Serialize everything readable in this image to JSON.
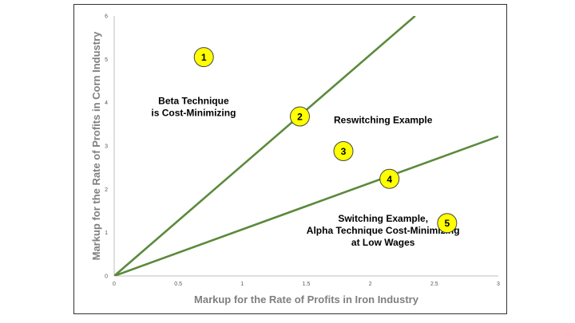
{
  "chart_data": {
    "type": "line",
    "xlabel": "Markup for the Rate of Profits in Iron Industry",
    "ylabel": "Markup for the Rate of Profits in Corn Industry",
    "xlim": [
      0,
      3
    ],
    "ylim": [
      0,
      6
    ],
    "x_ticks": [
      "0",
      "0.5",
      "1",
      "1.5",
      "2",
      "2.5",
      "3"
    ],
    "y_ticks": [
      "0",
      "1",
      "2",
      "3",
      "4",
      "5",
      "6"
    ],
    "grid": false,
    "series": [
      {
        "x": [
          0,
          2.35
        ],
        "y": [
          0,
          6
        ],
        "color": "#5b8a3c"
      },
      {
        "x": [
          0,
          3
        ],
        "y": [
          0,
          3.22
        ],
        "color": "#5b8a3c"
      }
    ],
    "annotations": [
      {
        "lines": [
          "Beta Technique",
          "is Cost-Minimizing"
        ],
        "x": 0.62,
        "y": 3.9
      },
      {
        "lines": [
          "Reswitching Example"
        ],
        "x": 2.1,
        "y": 3.6
      },
      {
        "lines": [
          "Switching Example,",
          "Alpha Technique Cost-Minimizing",
          "at Low Wages"
        ],
        "x": 2.1,
        "y": 1.05
      }
    ],
    "markers": [
      {
        "label": "1",
        "x": 0.7,
        "y": 5.05
      },
      {
        "label": "2",
        "x": 1.45,
        "y": 3.68
      },
      {
        "label": "3",
        "x": 1.79,
        "y": 2.88
      },
      {
        "label": "4",
        "x": 2.15,
        "y": 2.24
      },
      {
        "label": "5",
        "x": 2.6,
        "y": 1.22
      }
    ],
    "marker_fill": "#ffff00",
    "marker_stroke": "#444444"
  }
}
